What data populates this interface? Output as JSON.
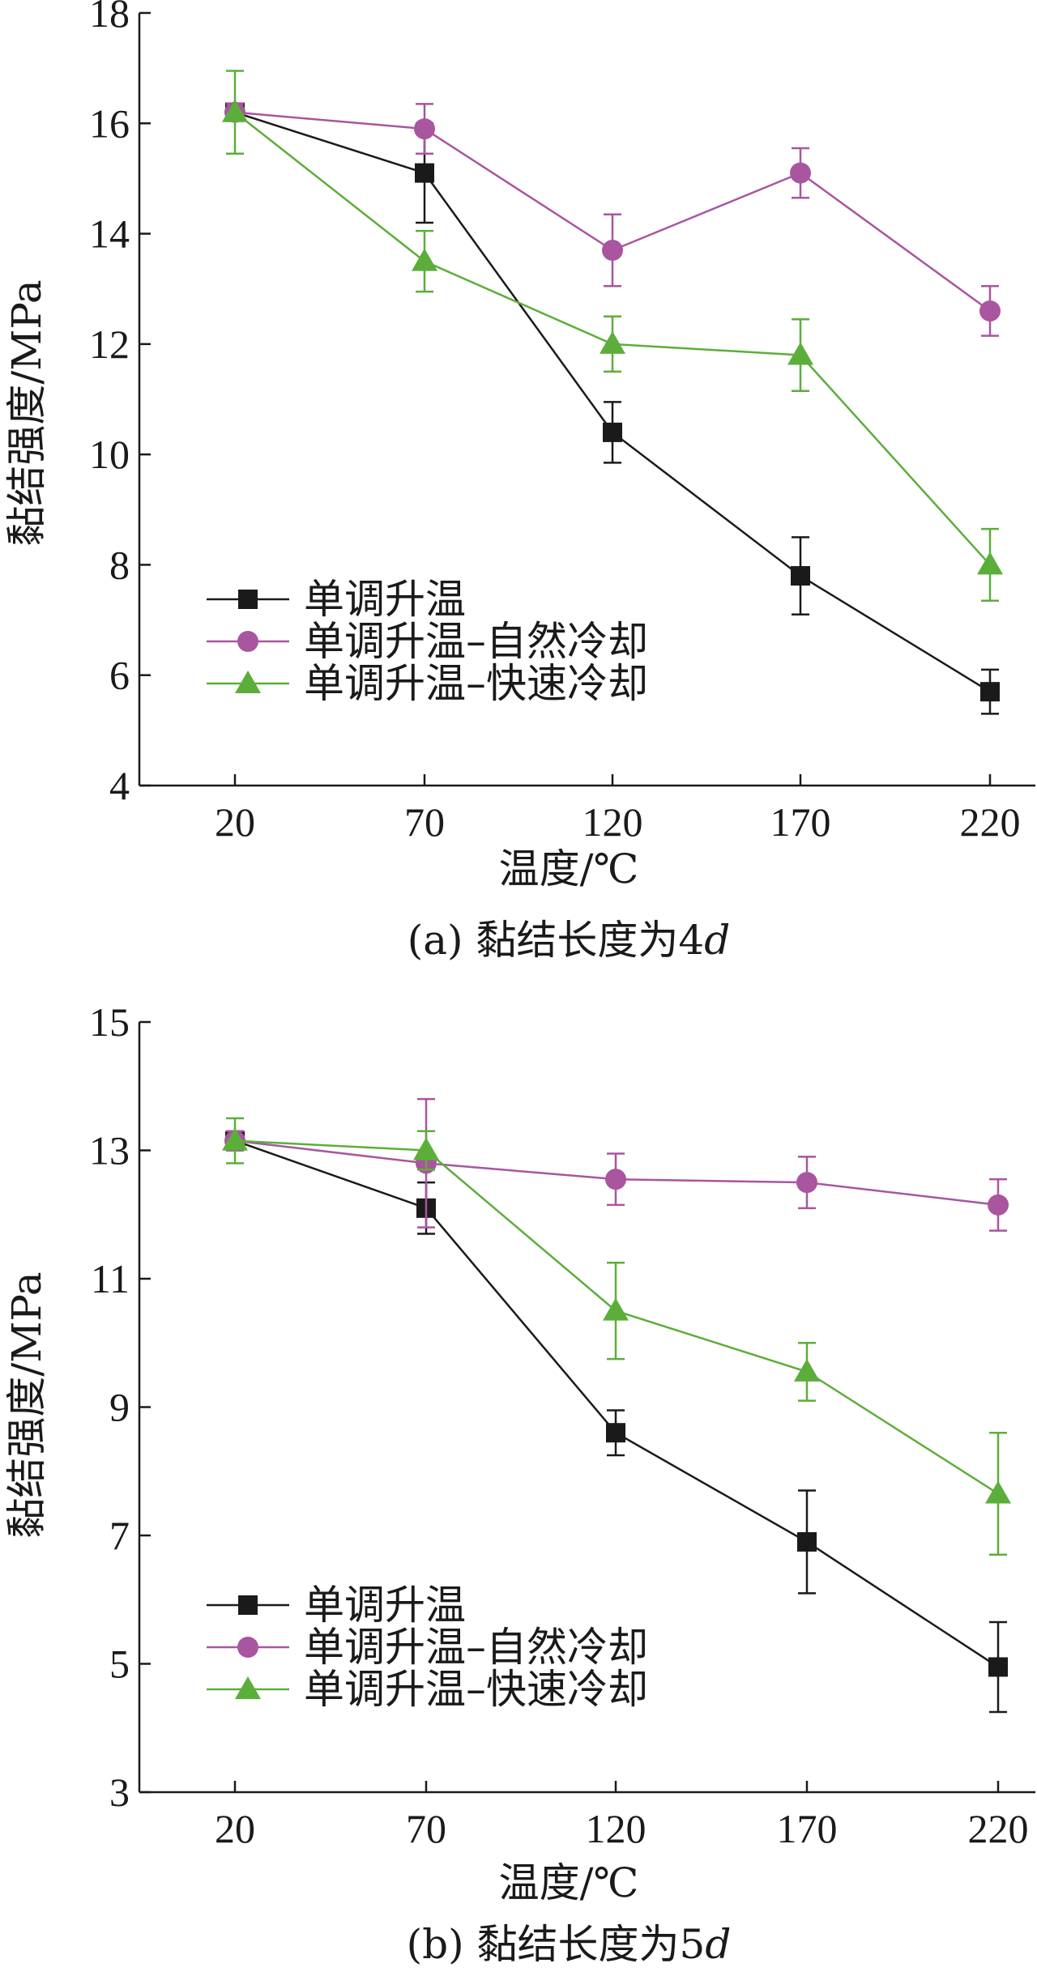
{
  "chart_data": [
    {
      "type": "line",
      "caption": "(a) 黏结长度为4d",
      "caption_prefix": "(a) 黏结长度为4",
      "caption_var": "d",
      "xlabel": "温度/℃",
      "ylabel": "黏结强度/MPa",
      "categories": [
        20,
        70,
        120,
        170,
        220
      ],
      "ylim": [
        4,
        18
      ],
      "yticks": [
        4,
        6,
        8,
        10,
        12,
        14,
        16,
        18
      ],
      "legend_position": "bottom-left",
      "series": [
        {
          "name": "单调升温",
          "marker": "square",
          "color": "#1a1a1a",
          "values": [
            16.2,
            15.1,
            10.4,
            7.8,
            5.7
          ],
          "err": [
            0.15,
            0.9,
            0.55,
            0.7,
            0.4
          ]
        },
        {
          "name": "单调升温–自然冷却",
          "marker": "circle",
          "color": "#a9559f",
          "values": [
            16.2,
            15.9,
            13.7,
            15.1,
            12.6
          ],
          "err": [
            0.15,
            0.45,
            0.65,
            0.45,
            0.45
          ]
        },
        {
          "name": "单调升温–快速冷却",
          "marker": "triangle",
          "color": "#5cae3a",
          "values": [
            16.2,
            13.5,
            12.0,
            11.8,
            8.0
          ],
          "err": [
            0.75,
            0.55,
            0.5,
            0.65,
            0.65
          ]
        }
      ]
    },
    {
      "type": "line",
      "caption": "(b) 黏结长度为5d",
      "caption_prefix": "(b) 黏结长度为5",
      "caption_var": "d",
      "xlabel": "温度/℃",
      "ylabel": "黏结强度/MPa",
      "categories": [
        20,
        70,
        120,
        170,
        220
      ],
      "ylim": [
        3,
        15
      ],
      "yticks": [
        3,
        5,
        7,
        9,
        11,
        13,
        15
      ],
      "legend_position": "bottom-left",
      "series": [
        {
          "name": "单调升温",
          "marker": "square",
          "color": "#1a1a1a",
          "values": [
            13.15,
            12.1,
            8.6,
            6.9,
            4.95
          ],
          "err": [
            0.15,
            0.4,
            0.35,
            0.8,
            0.7
          ]
        },
        {
          "name": "单调升温–自然冷却",
          "marker": "circle",
          "color": "#a9559f",
          "values": [
            13.15,
            12.8,
            12.55,
            12.5,
            12.15
          ],
          "err": [
            0.15,
            1.0,
            0.4,
            0.4,
            0.4
          ]
        },
        {
          "name": "单调升温–快速冷却",
          "marker": "triangle",
          "color": "#5cae3a",
          "values": [
            13.15,
            13.0,
            10.5,
            9.55,
            7.65
          ],
          "err": [
            0.35,
            0.3,
            0.75,
            0.45,
            0.95
          ]
        }
      ]
    }
  ]
}
